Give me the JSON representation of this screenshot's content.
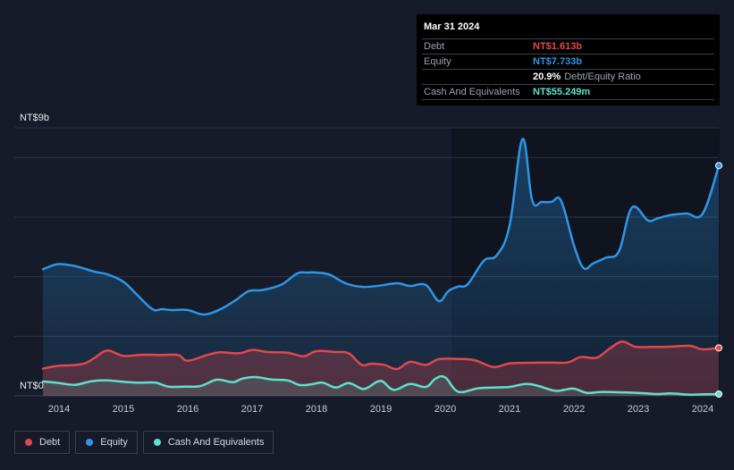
{
  "tooltip": {
    "date": "Mar 31 2024",
    "debt_label": "Debt",
    "debt_value": "NT$1.613b",
    "equity_label": "Equity",
    "equity_value": "NT$7.733b",
    "ratio_value": "20.9%",
    "ratio_label": "Debt/Equity Ratio",
    "cash_label": "Cash And Equivalents",
    "cash_value": "NT$55.249m"
  },
  "legend": {
    "debt_label": "Debt",
    "equity_label": "Equity",
    "cash_label": "Cash And Equivalents"
  },
  "colors": {
    "debt": "#e2474e",
    "equity": "#2e96e8",
    "cash": "#60e0cc",
    "background": "#151b28",
    "grid": "#2c3341"
  },
  "chart_data": {
    "type": "area",
    "title": "",
    "xlabel": "",
    "ylabel": "",
    "y_top_label": "NT$9b",
    "y_bottom_label": "NT$0",
    "xlim": [
      2013.75,
      2024.25
    ],
    "ylim": [
      0,
      9
    ],
    "x_ticks": [
      2014,
      2015,
      2016,
      2017,
      2018,
      2019,
      2020,
      2021,
      2022,
      2023,
      2024
    ],
    "x_tick_labels": [
      "2014",
      "2015",
      "2016",
      "2017",
      "2018",
      "2019",
      "2020",
      "2021",
      "2022",
      "2023",
      "2024"
    ],
    "grid_values": [
      2,
      4,
      6,
      8
    ],
    "series": [
      {
        "name": "Equity",
        "key": "equity",
        "x": [
          2013.75,
          2013.95,
          2014.1,
          2014.3,
          2014.55,
          2014.75,
          2015.0,
          2015.2,
          2015.45,
          2015.6,
          2015.75,
          2016.0,
          2016.25,
          2016.5,
          2016.75,
          2016.95,
          2017.15,
          2017.45,
          2017.7,
          2017.85,
          2018.0,
          2018.2,
          2018.45,
          2018.7,
          2018.95,
          2019.25,
          2019.45,
          2019.7,
          2019.9,
          2020.05,
          2020.2,
          2020.35,
          2020.6,
          2020.8,
          2021.0,
          2021.2,
          2021.35,
          2021.5,
          2021.65,
          2021.8,
          2022.0,
          2022.15,
          2022.3,
          2022.5,
          2022.7,
          2022.9,
          2023.15,
          2023.3,
          2023.5,
          2023.75,
          2024.0,
          2024.25
        ],
        "values": [
          4.25,
          4.41,
          4.41,
          4.33,
          4.17,
          4.08,
          3.83,
          3.42,
          2.91,
          2.91,
          2.88,
          2.88,
          2.73,
          2.9,
          3.22,
          3.52,
          3.55,
          3.73,
          4.11,
          4.14,
          4.14,
          4.07,
          3.78,
          3.66,
          3.69,
          3.78,
          3.69,
          3.72,
          3.18,
          3.52,
          3.67,
          3.75,
          4.54,
          4.72,
          5.72,
          8.62,
          6.57,
          6.51,
          6.51,
          6.55,
          5.05,
          4.29,
          4.45,
          4.64,
          4.86,
          6.32,
          5.89,
          5.96,
          6.07,
          6.12,
          6.12,
          7.73
        ]
      },
      {
        "name": "Debt",
        "key": "debt",
        "x": [
          2013.75,
          2013.95,
          2014.2,
          2014.4,
          2014.55,
          2014.75,
          2015.0,
          2015.3,
          2015.6,
          2015.85,
          2016.0,
          2016.3,
          2016.5,
          2016.8,
          2017.0,
          2017.25,
          2017.55,
          2017.8,
          2018.0,
          2018.3,
          2018.5,
          2018.7,
          2018.85,
          2019.05,
          2019.25,
          2019.45,
          2019.7,
          2019.9,
          2020.2,
          2020.45,
          2020.75,
          2021.0,
          2021.3,
          2021.6,
          2021.9,
          2022.1,
          2022.35,
          2022.55,
          2022.75,
          2022.95,
          2023.2,
          2023.5,
          2023.8,
          2024.0,
          2024.25
        ],
        "values": [
          0.91,
          1.0,
          1.03,
          1.09,
          1.27,
          1.52,
          1.34,
          1.38,
          1.37,
          1.37,
          1.18,
          1.37,
          1.46,
          1.43,
          1.54,
          1.47,
          1.45,
          1.33,
          1.5,
          1.47,
          1.43,
          1.04,
          1.08,
          1.04,
          0.9,
          1.14,
          1.04,
          1.23,
          1.24,
          1.2,
          0.97,
          1.09,
          1.11,
          1.12,
          1.12,
          1.3,
          1.28,
          1.58,
          1.82,
          1.65,
          1.64,
          1.65,
          1.68,
          1.56,
          1.61
        ]
      },
      {
        "name": "Cash And Equivalents",
        "key": "cash",
        "x": [
          2013.75,
          2014.0,
          2014.25,
          2014.5,
          2014.75,
          2015.0,
          2015.25,
          2015.5,
          2015.7,
          2015.95,
          2016.2,
          2016.45,
          2016.7,
          2016.85,
          2017.05,
          2017.3,
          2017.55,
          2017.75,
          2017.95,
          2018.1,
          2018.3,
          2018.5,
          2018.7,
          2018.8,
          2019.0,
          2019.2,
          2019.45,
          2019.7,
          2019.85,
          2020.0,
          2020.2,
          2020.5,
          2020.75,
          2021.0,
          2021.25,
          2021.45,
          2021.7,
          2021.85,
          2022.0,
          2022.2,
          2022.4,
          2022.7,
          2023.0,
          2023.3,
          2023.5,
          2023.8,
          2024.0,
          2024.25
        ],
        "values": [
          0.48,
          0.43,
          0.37,
          0.49,
          0.52,
          0.47,
          0.44,
          0.44,
          0.31,
          0.31,
          0.33,
          0.54,
          0.46,
          0.58,
          0.63,
          0.55,
          0.52,
          0.36,
          0.4,
          0.44,
          0.28,
          0.43,
          0.24,
          0.28,
          0.5,
          0.2,
          0.4,
          0.3,
          0.58,
          0.62,
          0.14,
          0.25,
          0.28,
          0.3,
          0.4,
          0.33,
          0.17,
          0.2,
          0.24,
          0.1,
          0.13,
          0.12,
          0.1,
          0.06,
          0.08,
          0.04,
          0.05,
          0.06
        ]
      }
    ]
  }
}
